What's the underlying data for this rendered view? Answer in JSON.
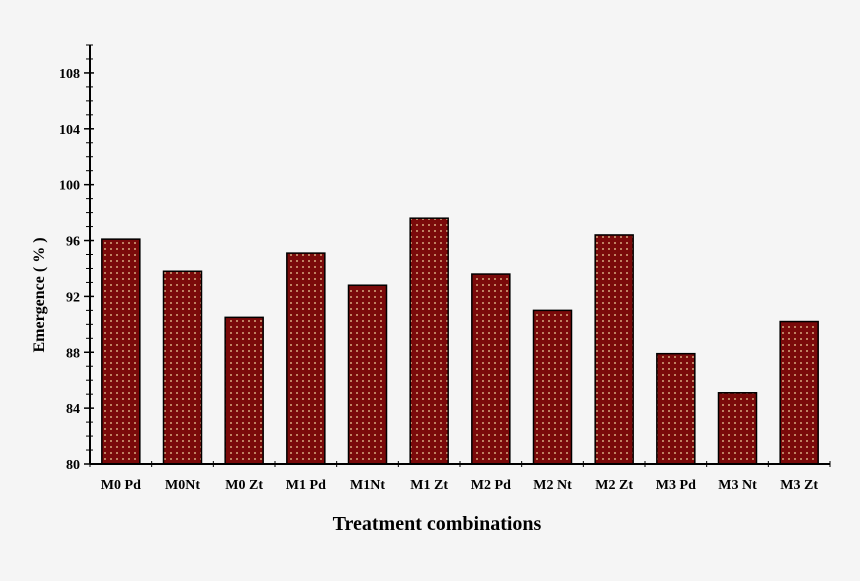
{
  "chart_data": {
    "type": "bar",
    "title": "",
    "xlabel": "Treatment combinations",
    "ylabel": "Emergence ( % )",
    "categories": [
      "M0 Pd",
      "M0Nt",
      "M0 Zt",
      "M1 Pd",
      "M1Nt",
      "M1 Zt",
      "M2 Pd",
      "M2 Nt",
      "M2 Zt",
      "M3 Pd",
      "M3 Nt",
      "M3 Zt"
    ],
    "values": [
      96.1,
      93.8,
      90.5,
      95.1,
      92.8,
      97.6,
      93.6,
      91.0,
      96.4,
      87.9,
      85.1,
      90.2
    ],
    "ylim": [
      80,
      110
    ],
    "yticks": [
      "80",
      "84",
      "88",
      "92",
      "96",
      "100",
      "104",
      "108"
    ],
    "grid": false,
    "legend": "none",
    "bar_color": "#7a0a0a",
    "dot_color": "#f0d8a0"
  }
}
